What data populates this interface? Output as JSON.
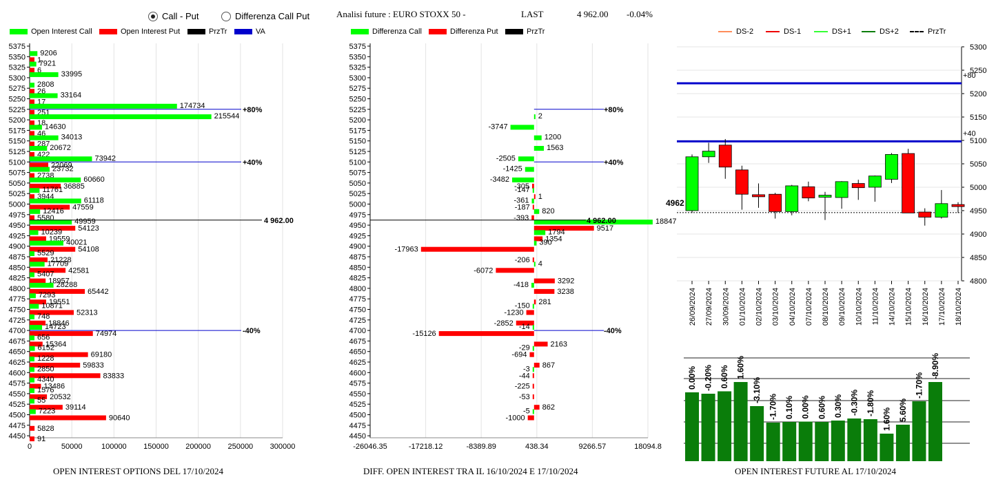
{
  "header": {
    "radio_call_put": "Call - Put",
    "radio_diff": "Differenza Call Put",
    "analysis_title": "Analisi future : EURO STOXX 50 -",
    "last_label": "LAST",
    "last_value": "4 962.00",
    "last_change": "-0.04%"
  },
  "legend1": {
    "call": "Open Interest Call",
    "put": "Open Interest Put",
    "przt": "PrzTr",
    "va": "VA"
  },
  "legend2": {
    "diff_call": "Differenza Call",
    "diff_put": "Differenza Put",
    "przt": "PrzTr"
  },
  "legend3": {
    "ds_m2": "DS-2",
    "ds_m1": "DS-1",
    "ds_p1": "DS+1",
    "ds_p2": "DS+2",
    "przt": "PrzTr"
  },
  "captions": {
    "chart1": "OPEN INTEREST OPTIONS DEL 17/10/2024",
    "chart2": "DIFF. OPEN INTEREST TRA IL 16/10/2024 E 17/10/2024",
    "chart3": "OPEN INTEREST FUTURE AL 17/10/2024"
  },
  "colors": {
    "call": "#00ff00",
    "put": "#ff0000",
    "va": "#0000cc",
    "future_bar": "#0a7d0a",
    "candle_up": "#00ff00",
    "candle_down": "#ff0000"
  },
  "chart_data": [
    {
      "type": "bar",
      "orientation": "horizontal",
      "strikes": [
        5375,
        5350,
        5325,
        5300,
        5275,
        5250,
        5225,
        5200,
        5175,
        5150,
        5125,
        5100,
        5075,
        5050,
        5025,
        5000,
        4975,
        4950,
        4925,
        4900,
        4875,
        4850,
        4825,
        4800,
        4775,
        4750,
        4725,
        4700,
        4675,
        4650,
        4625,
        4600,
        4575,
        4550,
        4525,
        4500,
        4475,
        4450
      ],
      "series": [
        {
          "name": "Open Interest Call",
          "values": [
            0,
            9206,
            7921,
            33995,
            2808,
            33164,
            174734,
            215544,
            14630,
            34013,
            20672,
            73942,
            23732,
            60660,
            11761,
            61118,
            12416,
            49959,
            10239,
            40021,
            5529,
            17709,
            5407,
            28288,
            7293,
            10871,
            748,
            14723,
            656,
            6152,
            1228,
            2850,
            4340,
            1576,
            55,
            7223,
            0,
            0
          ]
        },
        {
          "name": "Open Interest Put",
          "values": [
            0,
            1,
            6,
            0,
            26,
            17,
            251,
            18,
            46,
            287,
            422,
            22069,
            2738,
            36885,
            3944,
            47559,
            5580,
            54123,
            19559,
            54108,
            21228,
            42581,
            18957,
            65442,
            19551,
            52313,
            18846,
            74974,
            15364,
            69180,
            59833,
            83833,
            13486,
            20532,
            39114,
            90640,
            5828,
            91
          ]
        }
      ],
      "xlim": [
        0,
        300000
      ],
      "xticks": [
        "0",
        "50000",
        "100000",
        "150000",
        "200000",
        "250000",
        "300000"
      ],
      "reference_lines": [
        {
          "strike": 5225,
          "label": "+80%"
        },
        {
          "strike": 5100,
          "label": "+40%"
        },
        {
          "strike": 4962,
          "label": "4 962.00"
        },
        {
          "strike": 4700,
          "label": "-40%"
        }
      ]
    },
    {
      "type": "bar",
      "orientation": "horizontal",
      "strikes": [
        5375,
        5350,
        5325,
        5300,
        5275,
        5250,
        5225,
        5200,
        5175,
        5150,
        5125,
        5100,
        5075,
        5050,
        5025,
        5000,
        4975,
        4950,
        4925,
        4900,
        4875,
        4850,
        4825,
        4800,
        4775,
        4750,
        4725,
        4700,
        4675,
        4650,
        4625,
        4600,
        4575,
        4550,
        4525,
        4500,
        4475,
        4450
      ],
      "series": [
        {
          "name": "Differenza Call",
          "values": [
            0,
            0,
            0,
            0,
            0,
            0,
            0,
            2,
            -3747,
            1200,
            1563,
            -2505,
            -1425,
            -3482,
            -147,
            -361,
            820,
            18847,
            1794,
            390,
            0,
            4,
            0,
            -418,
            0,
            -150,
            0,
            -14,
            0,
            -29,
            0,
            -3,
            0,
            0,
            0,
            -5,
            0,
            0
          ]
        },
        {
          "name": "Differenza Put",
          "values": [
            0,
            0,
            0,
            0,
            0,
            0,
            0,
            0,
            0,
            0,
            0,
            0,
            0,
            -305,
            1,
            -187,
            -393,
            9517,
            1354,
            -17963,
            -206,
            -6072,
            3292,
            3238,
            281,
            -1230,
            -2852,
            -15126,
            2163,
            -694,
            867,
            -44,
            -225,
            -53,
            862,
            -1000,
            0,
            0
          ]
        }
      ],
      "xlim": [
        -26046.35,
        18094.8
      ],
      "xticks": [
        "-26046.35",
        "-17218.12",
        "-8389.89",
        "438.34",
        "9266.57",
        "18094.8"
      ],
      "reference_lines": [
        {
          "strike": 5225,
          "label": "+80%"
        },
        {
          "strike": 5100,
          "label": "+40%"
        },
        {
          "strike": 4962,
          "label": "4 962.00"
        },
        {
          "strike": 4700,
          "label": "-40%"
        }
      ]
    },
    {
      "type": "candlestick",
      "dates": [
        "26/09/2024",
        "27/09/2024",
        "30/09/2024",
        "01/10/2024",
        "02/10/2024",
        "03/10/2024",
        "04/10/2024",
        "07/10/2024",
        "08/10/2024",
        "09/10/2024",
        "10/10/2024",
        "11/10/2024",
        "14/10/2024",
        "15/10/2024",
        "16/10/2024",
        "17/10/2024",
        "18/10/2024"
      ],
      "ohlc": [
        [
          4950,
          5070,
          4945,
          5065
        ],
        [
          5065,
          5095,
          5052,
          5077
        ],
        [
          5090,
          5103,
          5018,
          5043
        ],
        [
          5037,
          5046,
          4952,
          4985
        ],
        [
          4984,
          5008,
          4956,
          4983
        ],
        [
          4985,
          4988,
          4933,
          4948
        ],
        [
          4948,
          5005,
          4940,
          5003
        ],
        [
          5001,
          5012,
          4970,
          4977
        ],
        [
          4983,
          4990,
          4930,
          4983
        ],
        [
          4978,
          5013,
          4954,
          5012
        ],
        [
          5008,
          5016,
          4973,
          4999
        ],
        [
          5000,
          5025,
          4969,
          5024
        ],
        [
          5017,
          5073,
          5009,
          5070
        ],
        [
          5072,
          5082,
          4949,
          4945
        ],
        [
          4947,
          4955,
          4918,
          4936
        ],
        [
          4936,
          4994,
          4933,
          4965
        ],
        [
          4963,
          4968,
          4945,
          4960
        ]
      ],
      "ylim": [
        4800,
        5300
      ],
      "yticks": [
        "4800",
        "4850",
        "4900",
        "4950",
        "5000",
        "5050",
        "5100",
        "5150",
        "5200",
        "5250",
        "5300"
      ],
      "reference_lines": [
        {
          "value": 5222,
          "label": "+80"
        },
        {
          "value": 5098,
          "label": "+40"
        },
        {
          "value": 4962,
          "label": "4962"
        }
      ]
    },
    {
      "type": "bar",
      "dates": [
        "26/09/2024",
        "27/09/2024",
        "30/09/2024",
        "01/10/2024",
        "02/10/2024",
        "03/10/2024",
        "04/10/2024",
        "07/10/2024",
        "08/10/2024",
        "09/10/2024",
        "10/10/2024",
        "11/10/2024",
        "14/10/2024",
        "15/10/2024",
        "16/10/2024",
        "17/10/2024",
        "18/10/2024"
      ],
      "values": [
        100,
        98,
        101.5,
        115,
        80,
        56,
        57,
        57.5,
        57,
        59,
        62,
        61,
        40,
        53,
        87,
        115,
        5
      ],
      "labels": [
        "0.00%",
        "-0.20%",
        "0.60%",
        "1.60%",
        "-3.10%",
        "-1.70%",
        "0.10%",
        "0.00%",
        "0.60%",
        "0.30%",
        "-0.30%",
        "-1.80%",
        "1.60%",
        "5.60%",
        "-1.70%",
        "-8.90%",
        ""
      ],
      "ylim": [
        0,
        150
      ]
    }
  ]
}
